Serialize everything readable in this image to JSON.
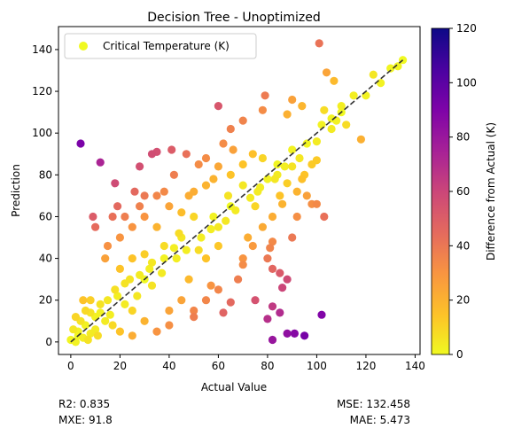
{
  "chart_data": {
    "type": "scatter",
    "title": "Decision Tree - Unoptimized",
    "xlabel": "Actual Value",
    "ylabel": "Prediction",
    "xlim": [
      -5,
      142
    ],
    "ylim": [
      -6,
      151
    ],
    "xticks": [
      0,
      20,
      40,
      60,
      80,
      100,
      120,
      140
    ],
    "yticks": [
      0,
      20,
      40,
      60,
      80,
      100,
      120,
      140
    ],
    "legend": {
      "label": "Critical Temperature (K)",
      "position": "top-left"
    },
    "colorbar": {
      "label": "Difference from Actual (K)",
      "colormap": "plasma_r",
      "range": [
        0,
        120
      ],
      "ticks": [
        0,
        20,
        40,
        60,
        80,
        100,
        120
      ]
    },
    "reference_line": {
      "style": "dashed",
      "color": "#333333",
      "from": [
        0,
        0
      ],
      "to": [
        135,
        135
      ]
    },
    "series": [
      {
        "values": [
          [
            0,
            1
          ],
          [
            2,
            12
          ],
          [
            3,
            5
          ],
          [
            5,
            20
          ],
          [
            8,
            14
          ],
          [
            10,
            6
          ],
          [
            4,
            95
          ],
          [
            12,
            86
          ],
          [
            18,
            76
          ],
          [
            17,
            60
          ],
          [
            19,
            65
          ],
          [
            9,
            60
          ],
          [
            10,
            55
          ],
          [
            28,
            84
          ],
          [
            33,
            90
          ],
          [
            35,
            91
          ],
          [
            41,
            92
          ],
          [
            47,
            90
          ],
          [
            60,
            113
          ],
          [
            65,
            102
          ],
          [
            70,
            106
          ],
          [
            78,
            111
          ],
          [
            79,
            118
          ],
          [
            90,
            116
          ],
          [
            88,
            109
          ],
          [
            101,
            143
          ],
          [
            104,
            129
          ],
          [
            107,
            125
          ],
          [
            123,
            128
          ],
          [
            130,
            131
          ],
          [
            110,
            113
          ],
          [
            103,
            111
          ],
          [
            118,
            97
          ],
          [
            106,
            107
          ],
          [
            94,
            113
          ],
          [
            88,
            4
          ],
          [
            91,
            4
          ],
          [
            95,
            3
          ],
          [
            82,
            1
          ],
          [
            80,
            11
          ],
          [
            82,
            17
          ],
          [
            86,
            26
          ],
          [
            75,
            20
          ],
          [
            65,
            19
          ],
          [
            57,
            27
          ],
          [
            52,
            44
          ],
          [
            60,
            46
          ],
          [
            70,
            40
          ],
          [
            74,
            46
          ],
          [
            80,
            40
          ],
          [
            82,
            48
          ],
          [
            88,
            30
          ],
          [
            90,
            50
          ],
          [
            92,
            60
          ],
          [
            100,
            66
          ],
          [
            103,
            60
          ],
          [
            102,
            13
          ],
          [
            85,
            33
          ],
          [
            82,
            35
          ],
          [
            81,
            45
          ],
          [
            85,
            14
          ],
          [
            70,
            37
          ],
          [
            62,
            14
          ],
          [
            50,
            15
          ],
          [
            40,
            15
          ],
          [
            30,
            10
          ],
          [
            25,
            15
          ],
          [
            45,
            20
          ],
          [
            48,
            30
          ],
          [
            55,
            40
          ],
          [
            50,
            60
          ],
          [
            40,
            65
          ],
          [
            35,
            70
          ],
          [
            30,
            60
          ],
          [
            25,
            55
          ],
          [
            20,
            50
          ],
          [
            15,
            46
          ],
          [
            14,
            40
          ],
          [
            20,
            35
          ],
          [
            30,
            30
          ],
          [
            45,
            50
          ],
          [
            58,
            60
          ],
          [
            58,
            78
          ],
          [
            65,
            80
          ],
          [
            60,
            84
          ],
          [
            55,
            75
          ],
          [
            48,
            70
          ],
          [
            42,
            80
          ],
          [
            38,
            72
          ],
          [
            30,
            70
          ],
          [
            28,
            65
          ],
          [
            26,
            72
          ],
          [
            22,
            60
          ],
          [
            35,
            55
          ],
          [
            60,
            55
          ],
          [
            65,
            65
          ],
          [
            75,
            65
          ],
          [
            85,
            70
          ],
          [
            92,
            72
          ],
          [
            98,
            85
          ],
          [
            100,
            87
          ],
          [
            96,
            95
          ],
          [
            106,
            102
          ],
          [
            112,
            104
          ],
          [
            120,
            118
          ],
          [
            126,
            124
          ],
          [
            133,
            132
          ],
          [
            135,
            135
          ],
          [
            95,
            80
          ],
          [
            93,
            88
          ],
          [
            90,
            92
          ],
          [
            84,
            85
          ],
          [
            78,
            88
          ],
          [
            74,
            90
          ],
          [
            70,
            85
          ],
          [
            66,
            92
          ],
          [
            62,
            95
          ],
          [
            55,
            88
          ],
          [
            52,
            85
          ],
          [
            50,
            72
          ],
          [
            45,
            62
          ],
          [
            42,
            45
          ],
          [
            38,
            40
          ],
          [
            33,
            38
          ],
          [
            30,
            42
          ],
          [
            25,
            40
          ],
          [
            22,
            28
          ],
          [
            18,
            25
          ],
          [
            15,
            20
          ],
          [
            12,
            18
          ],
          [
            10,
            12
          ],
          [
            8,
            20
          ],
          [
            6,
            15
          ],
          [
            4,
            10
          ],
          [
            3,
            3
          ],
          [
            6,
            8
          ],
          [
            14,
            10
          ],
          [
            20,
            5
          ],
          [
            25,
            3
          ],
          [
            35,
            5
          ],
          [
            40,
            8
          ],
          [
            50,
            12
          ],
          [
            55,
            20
          ],
          [
            60,
            25
          ],
          [
            68,
            30
          ],
          [
            72,
            50
          ],
          [
            78,
            55
          ],
          [
            82,
            60
          ],
          [
            86,
            66
          ],
          [
            88,
            76
          ],
          [
            94,
            78
          ],
          [
            96,
            70
          ],
          [
            98,
            66
          ],
          [
            110,
            110
          ],
          [
            115,
            118
          ],
          [
            100,
            96
          ],
          [
            102,
            104
          ],
          [
            108,
            106
          ],
          [
            64,
            70
          ],
          [
            70,
            75
          ],
          [
            76,
            72
          ],
          [
            80,
            78
          ],
          [
            84,
            80
          ],
          [
            90,
            84
          ],
          [
            44,
            52
          ],
          [
            38,
            46
          ],
          [
            32,
            35
          ],
          [
            28,
            32
          ],
          [
            24,
            30
          ],
          [
            19,
            22
          ],
          [
            16,
            13
          ],
          [
            12,
            14
          ],
          [
            8,
            4
          ],
          [
            5,
            2
          ],
          [
            2,
            0
          ],
          [
            1,
            6
          ],
          [
            7,
            1
          ],
          [
            11,
            3
          ],
          [
            17,
            8
          ],
          [
            22,
            18
          ],
          [
            27,
            22
          ],
          [
            33,
            27
          ],
          [
            37,
            33
          ],
          [
            43,
            40
          ],
          [
            47,
            44
          ],
          [
            53,
            50
          ],
          [
            57,
            54
          ],
          [
            63,
            58
          ],
          [
            67,
            63
          ],
          [
            73,
            69
          ],
          [
            77,
            74
          ],
          [
            83,
            78
          ],
          [
            87,
            84
          ]
        ]
      }
    ]
  },
  "stats": {
    "r2": "R2: 0.835",
    "mxe": "MXE: 91.8",
    "mse": "MSE: 132.458",
    "mae": "MAE: 5.473"
  }
}
